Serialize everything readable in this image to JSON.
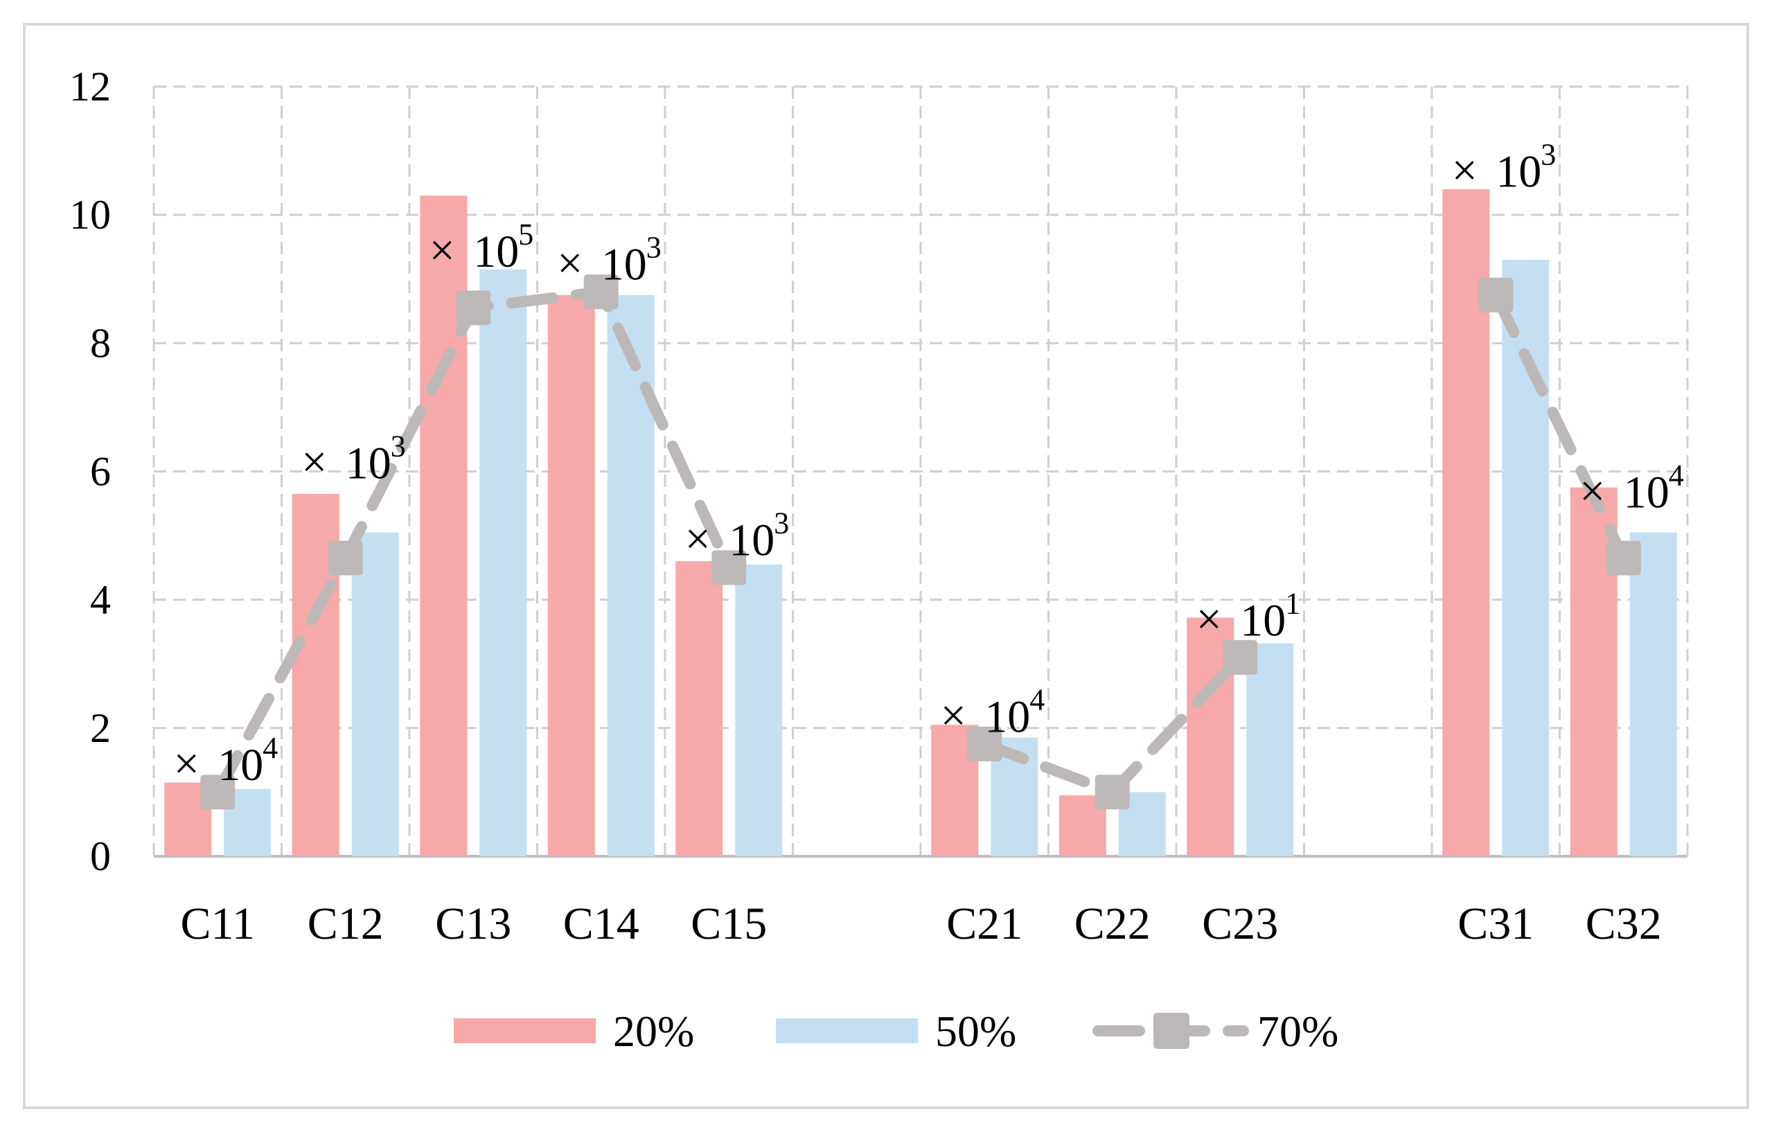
{
  "chart_data": {
    "type": "bar",
    "categories": [
      "C11",
      "C12",
      "C13",
      "C14",
      "C15",
      "",
      "C21",
      "C22",
      "C23",
      "",
      "C31",
      "C32"
    ],
    "series": [
      {
        "name": "20%",
        "type": "bar",
        "color": "#f7a8a8",
        "values": [
          1.15,
          5.65,
          10.3,
          8.75,
          4.6,
          null,
          2.05,
          0.95,
          3.72,
          null,
          10.4,
          5.75
        ]
      },
      {
        "name": "50%",
        "type": "bar",
        "color": "#c5dff2",
        "values": [
          1.05,
          5.05,
          9.15,
          8.75,
          4.55,
          null,
          1.85,
          1.0,
          3.32,
          null,
          9.3,
          5.05
        ]
      },
      {
        "name": "70%",
        "type": "line",
        "color": "#bdb8b8",
        "values": [
          1.0,
          4.65,
          8.55,
          8.8,
          4.5,
          null,
          1.75,
          1.0,
          3.1,
          null,
          8.75,
          4.65
        ]
      }
    ],
    "annotations": [
      {
        "category": "C11",
        "y": 1.45,
        "base": "10",
        "exponent": "4"
      },
      {
        "category": "C12",
        "y": 6.15,
        "base": "10",
        "exponent": "3"
      },
      {
        "category": "C13",
        "y": 9.45,
        "base": "10",
        "exponent": "5"
      },
      {
        "category": "C14",
        "y": 9.25,
        "base": "10",
        "exponent": "3"
      },
      {
        "category": "C15",
        "y": 4.95,
        "base": "10",
        "exponent": "3"
      },
      {
        "category": "C21",
        "y": 2.2,
        "base": "10",
        "exponent": "4"
      },
      {
        "category": "C23",
        "y": 3.7,
        "base": "10",
        "exponent": "1"
      },
      {
        "category": "C31",
        "y": 10.7,
        "base": "10",
        "exponent": "3"
      },
      {
        "category": "C32",
        "y": 5.7,
        "base": "10",
        "exponent": "4"
      }
    ],
    "marker_symbol": "×",
    "ylim": [
      0,
      12
    ],
    "yticks": [
      0,
      2,
      4,
      6,
      8,
      10,
      12
    ],
    "grid": true,
    "legend_position": "bottom",
    "title": "",
    "xlabel": "",
    "ylabel": ""
  }
}
